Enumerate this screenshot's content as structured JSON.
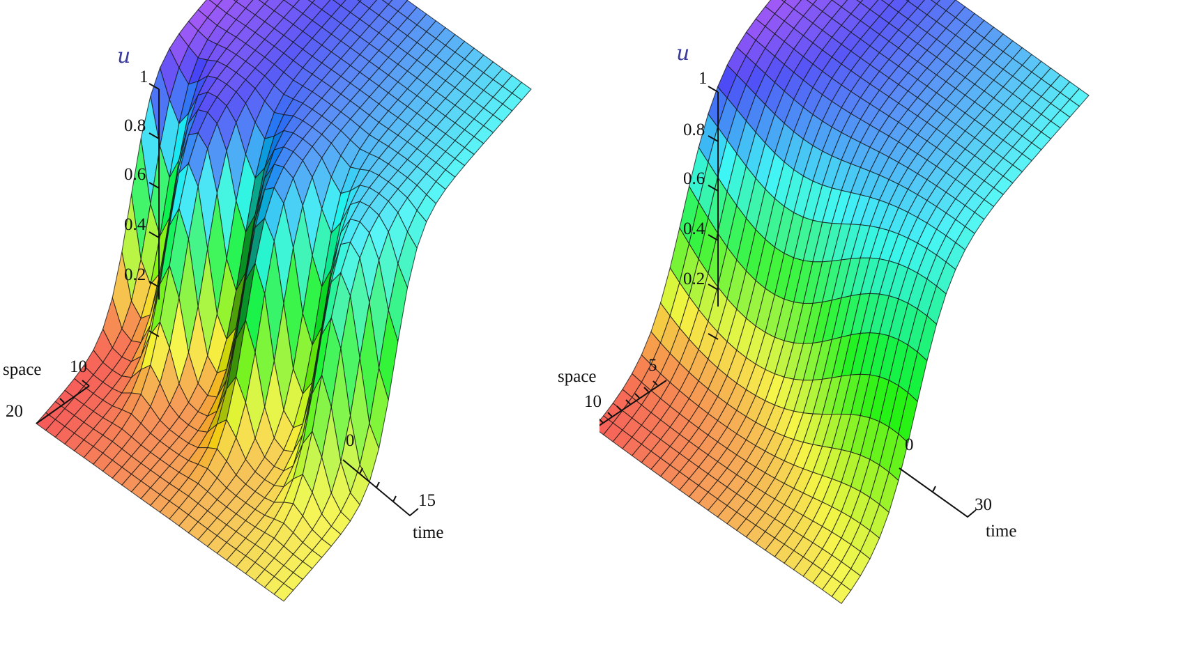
{
  "chart_data": [
    {
      "type": "surface3d",
      "title": "",
      "zlabel": "u",
      "xlabel": "time",
      "ylabel": "space",
      "zlim": [
        0,
        1
      ],
      "z_ticks": [
        "1",
        "0.8",
        "0.6",
        "0.4",
        "0.2"
      ],
      "time_ticks": [
        "0",
        "15"
      ],
      "space_ticks": [
        "10",
        "20"
      ],
      "time_range": [
        0,
        15
      ],
      "space_range": [
        0,
        20
      ],
      "grid": true,
      "colormap": "hue (red-yellow at u=0 low space, purple-blue-cyan at u=1)",
      "description": "Front/kink solution u rising from 0 to 1 along space with oscillatory (breather-like) modulation in time; three ripples visible"
    },
    {
      "type": "surface3d",
      "title": "",
      "zlabel": "u",
      "xlabel": "time",
      "ylabel": "space",
      "zlim": [
        0,
        1
      ],
      "z_ticks": [
        "1",
        "0.8",
        "0.6",
        "0.4",
        "0.2"
      ],
      "time_ticks": [
        "0",
        "30"
      ],
      "space_ticks": [
        "5",
        "10"
      ],
      "time_range": [
        0,
        30
      ],
      "space_range": [
        0,
        10
      ],
      "grid": true,
      "colormap": "hue (red-yellow at u=0 low space, purple-blue-cyan at u=1)",
      "description": "Front/kink solution u rising from 0 to 1 with smoother, single slow modulation in time"
    }
  ],
  "plots": [
    {
      "u_label": "u",
      "z_ticks": [
        "1",
        "0.8",
        "0.6",
        "0.4",
        "0.2"
      ],
      "space_label": "space",
      "space_tick_a": "10",
      "space_tick_b": "20",
      "time_label": "time",
      "time_tick_0": "0",
      "time_tick_end": "15"
    },
    {
      "u_label": "u",
      "z_ticks": [
        "1",
        "0.8",
        "0.6",
        "0.4",
        "0.2"
      ],
      "space_label": "space",
      "space_tick_a": "5",
      "space_tick_b": "10",
      "time_label": "time",
      "time_tick_0": "0",
      "time_tick_end": "30"
    }
  ]
}
